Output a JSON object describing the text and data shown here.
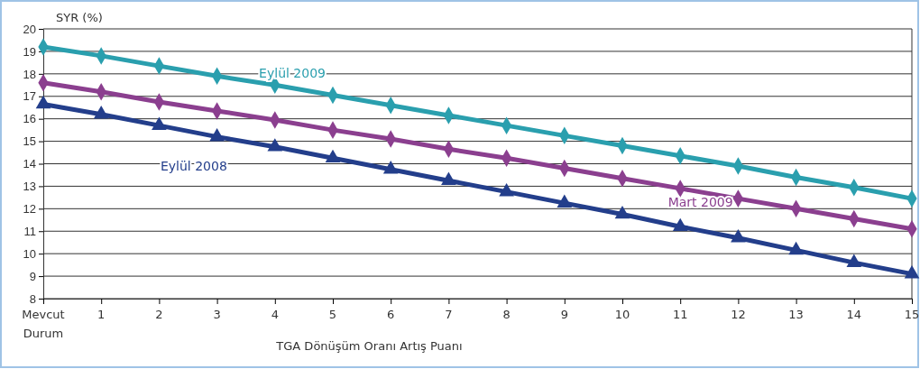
{
  "chart_data": {
    "type": "line",
    "xlabel": "TGA Dönüşüm Oranı Artış Puanı",
    "ylabel": "SYR (%)",
    "categories": [
      "Mevcut Durum",
      "1",
      "2",
      "3",
      "4",
      "5",
      "6",
      "7",
      "8",
      "9",
      "10",
      "11",
      "12",
      "13",
      "14",
      "15"
    ],
    "ylim": [
      8,
      20
    ],
    "yticks": [
      8,
      9,
      10,
      11,
      12,
      13,
      14,
      15,
      16,
      17,
      18,
      19,
      20
    ],
    "grid": "y",
    "legend": false,
    "series": [
      {
        "name": "Eylül 2009",
        "color": "#2a9fae",
        "marker": "diamond",
        "values": [
          19.2,
          18.8,
          18.35,
          17.9,
          17.5,
          17.05,
          16.6,
          16.15,
          15.7,
          15.25,
          14.8,
          14.35,
          13.9,
          13.4,
          12.95,
          12.45
        ]
      },
      {
        "name": "Mart 2009",
        "color": "#8b3f8f",
        "marker": "diamond",
        "values": [
          17.6,
          17.2,
          16.75,
          16.35,
          15.95,
          15.5,
          15.1,
          14.65,
          14.25,
          13.8,
          13.35,
          12.9,
          12.45,
          12.0,
          11.55,
          11.1
        ]
      },
      {
        "name": "Eylül 2008",
        "color": "#233e8b",
        "marker": "triangle",
        "values": [
          16.65,
          16.2,
          15.7,
          15.2,
          14.75,
          14.25,
          13.75,
          13.25,
          12.75,
          12.25,
          11.75,
          11.2,
          10.7,
          10.15,
          9.6,
          9.1
        ]
      }
    ]
  }
}
